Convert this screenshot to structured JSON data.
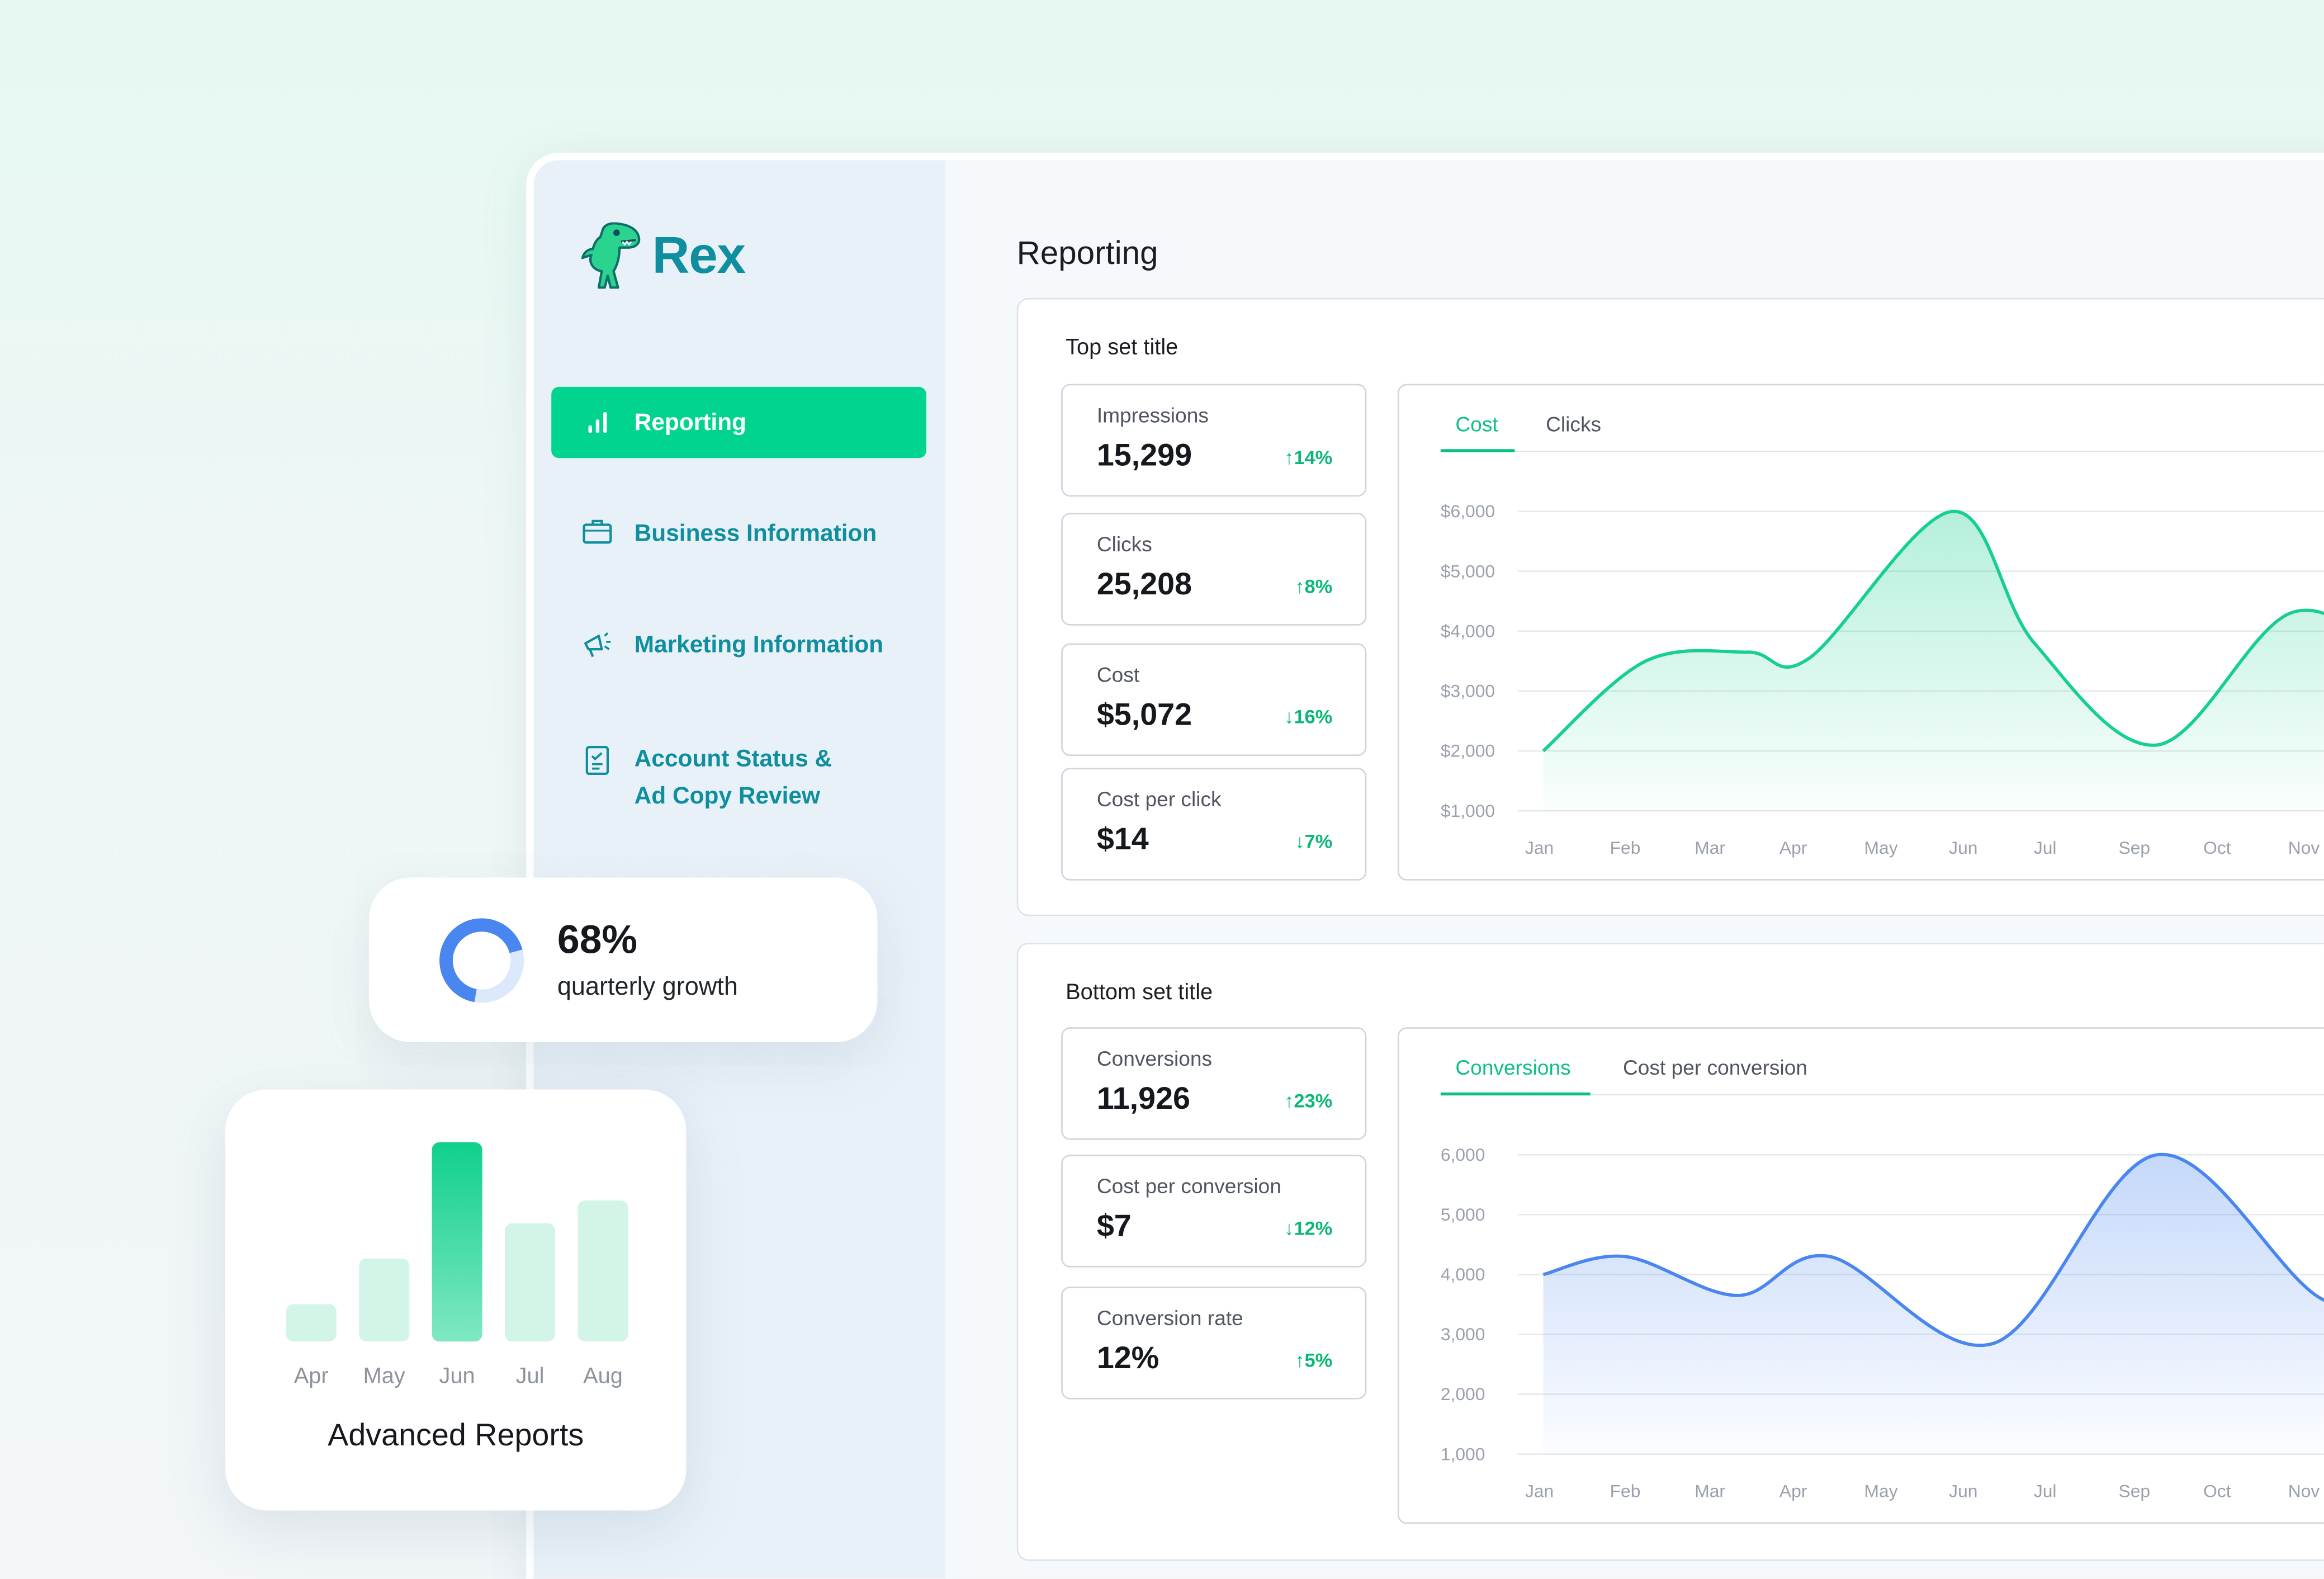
{
  "app": {
    "name": "Rex"
  },
  "sidebar": {
    "items": [
      {
        "label": "Reporting",
        "active": true
      },
      {
        "label": "Business Information"
      },
      {
        "label": "Marketing Information"
      },
      {
        "label_line1": "Account Status &",
        "label_line2": "Ad Copy Review"
      }
    ]
  },
  "page": {
    "title": "Reporting"
  },
  "top_set": {
    "title": "Top set title",
    "kpis": [
      {
        "label": "Impressions",
        "value": "15,299",
        "delta": "↑14%"
      },
      {
        "label": "Clicks",
        "value": "25,208",
        "delta": "↑8%"
      },
      {
        "label": "Cost",
        "value": "$5,072",
        "delta": "↓16%"
      },
      {
        "label": "Cost per click",
        "value": "$14",
        "delta": "↓7%"
      }
    ],
    "tabs": [
      "Cost",
      "Clicks"
    ],
    "active_tab": "Cost"
  },
  "bottom_set": {
    "title": "Bottom set title",
    "kpis": [
      {
        "label": "Conversions",
        "value": "11,926",
        "delta": "↑23%"
      },
      {
        "label": "Cost per conversion",
        "value": "$7",
        "delta": "↓12%"
      },
      {
        "label": "Conversion rate",
        "value": "12%",
        "delta": "↑5%"
      }
    ],
    "tabs": [
      "Conversions",
      "Cost per conversion"
    ],
    "active_tab": "Conversions"
  },
  "growth_card": {
    "value": "68%",
    "label": "quarterly growth",
    "fraction": 0.68
  },
  "reports_card": {
    "title": "Advanced Reports"
  },
  "colors": {
    "accent": "#00d48f",
    "brand": "#0e8e9e",
    "blue_series": "#4a86f0",
    "green_series": "#17cf8e"
  },
  "chart_data": [
    {
      "type": "area",
      "ylim": [
        1000,
        6000
      ],
      "ytick_labels": [
        "$6,000",
        "$5,000",
        "$4,000",
        "$3,000",
        "$2,000",
        "$1,000"
      ],
      "ytick_values": [
        6000,
        5000,
        4000,
        3000,
        2000,
        1000
      ],
      "categories": [
        "Jan",
        "Feb",
        "Mar",
        "Apr",
        "May",
        "Jun",
        "Jul",
        "Sep",
        "Oct",
        "Nov"
      ],
      "x": [
        0,
        1.0,
        2.0,
        2.6,
        4.0,
        4.8,
        6.0,
        7.3,
        8.4,
        9.4
      ],
      "y": [
        2000,
        3500,
        3650,
        3550,
        6000,
        3800,
        2100,
        4300,
        3700,
        4350
      ],
      "xlim": [
        -0.25,
        9.6
      ],
      "series_color": "#17cf8e",
      "grid": true
    },
    {
      "type": "area",
      "ylim": [
        1000,
        6000
      ],
      "ytick_labels": [
        "6,000",
        "5,000",
        "4,000",
        "3,000",
        "2,000",
        "1,000"
      ],
      "ytick_values": [
        6000,
        5000,
        4000,
        3000,
        2000,
        1000
      ],
      "categories": [
        "Jan",
        "Feb",
        "Mar",
        "Apr",
        "May",
        "Jun",
        "Jul",
        "Sep",
        "Oct",
        "Nov"
      ],
      "x": [
        0,
        0.8,
        1.9,
        2.8,
        4.4,
        6.0,
        7.6,
        8.6,
        9.4
      ],
      "y": [
        4000,
        4300,
        3650,
        4300,
        2850,
        6000,
        3600,
        3550,
        3650
      ],
      "xlim": [
        -0.25,
        9.6
      ],
      "series_color": "#4a86f0",
      "grid": true
    },
    {
      "type": "bar",
      "categories": [
        "Apr",
        "May",
        "Jun",
        "Jul",
        "Aug"
      ],
      "values": [
        1.8,
        4.0,
        9.6,
        5.7,
        6.8
      ],
      "ylim": [
        0,
        10
      ],
      "highlight": "Jun",
      "title": "Advanced Reports",
      "grid": false
    }
  ]
}
